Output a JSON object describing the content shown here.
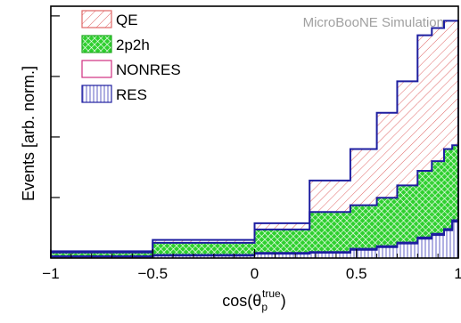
{
  "chart_data": {
    "type": "histogram-stacked",
    "annotation": "MicroBooNE Simulation",
    "ylabel": "Events [arb. norm.]",
    "xlabel_parts": {
      "main": "cos(θ",
      "sub": "p",
      "sup": "true",
      "close": ")"
    },
    "xlim": [
      -1,
      1
    ],
    "ylim": [
      0,
      1.04
    ],
    "x_ticks": [
      -1,
      -0.5,
      0,
      0.5,
      1
    ],
    "x_tick_labels": [
      "−1",
      "−0.5",
      "0",
      "0.5",
      "1"
    ],
    "y_ticks": [
      0.25,
      0.5,
      0.75,
      1.0
    ],
    "bin_edges": [
      -1,
      -0.5,
      0,
      0.27,
      0.47,
      0.6,
      0.7,
      0.8,
      0.87,
      0.93,
      0.97,
      1.0
    ],
    "series": [
      {
        "name": "RES",
        "color": "#1e1ea0",
        "pattern": "vertical",
        "values": [
          0.006,
          0.01,
          0.018,
          0.022,
          0.034,
          0.045,
          0.06,
          0.08,
          0.095,
          0.115,
          0.15
        ]
      },
      {
        "name": "NONRES",
        "color": "#d03080",
        "pattern": "none",
        "values": [
          0.002,
          0.003,
          0.003,
          0.003,
          0.004,
          0.004,
          0.004,
          0.005,
          0.005,
          0.005,
          0.006
        ]
      },
      {
        "name": "2p2h",
        "color": "#22aa22",
        "pattern": "crosshatch",
        "values": [
          0.015,
          0.05,
          0.097,
          0.165,
          0.18,
          0.2,
          0.236,
          0.275,
          0.3,
          0.33,
          0.31
        ]
      },
      {
        "name": "QE",
        "color": "#e06666",
        "pattern": "diagonal",
        "values": [
          0.005,
          0.012,
          0.026,
          0.13,
          0.232,
          0.351,
          0.43,
          0.56,
          0.55,
          0.53,
          0.514
        ]
      }
    ],
    "legend": [
      {
        "label": "QE",
        "series": "QE"
      },
      {
        "label": "2p2h",
        "series": "2p2h"
      },
      {
        "label": "NONRES",
        "series": "NONRES"
      },
      {
        "label": "RES",
        "series": "RES"
      }
    ],
    "outline_color": "#1e1ea0",
    "watermark_color": "#a0a0a0"
  }
}
